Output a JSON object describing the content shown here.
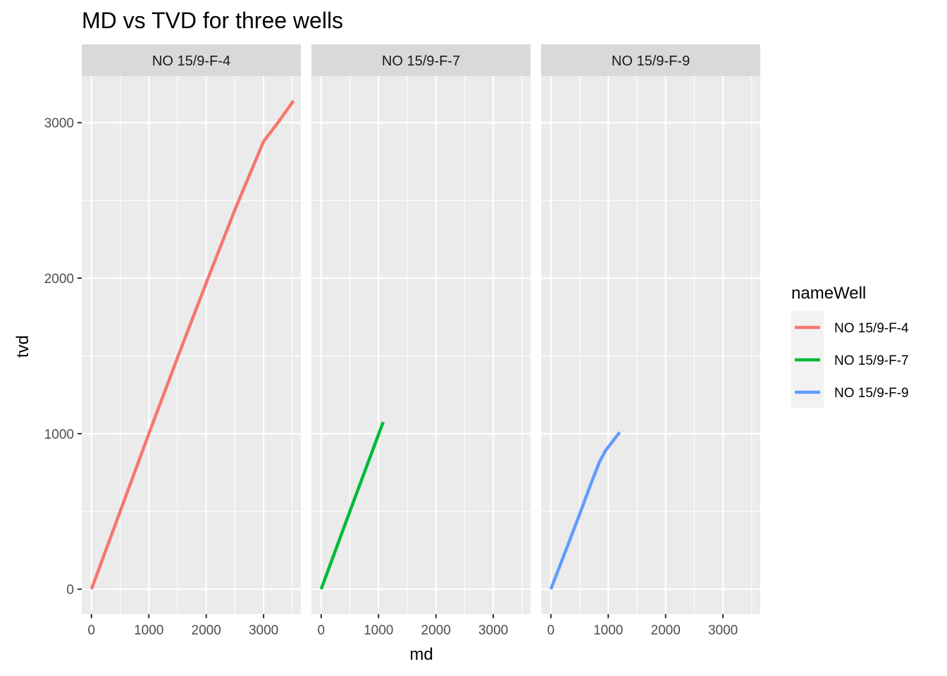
{
  "chart_data": {
    "type": "line",
    "title": "MD vs TVD for three wells",
    "xlabel": "md",
    "ylabel": "tvd",
    "xlim": [
      -170,
      3650
    ],
    "ylim": [
      -160,
      3300
    ],
    "x_ticks": [
      0,
      1000,
      2000,
      3000
    ],
    "y_ticks": [
      0,
      1000,
      2000,
      3000
    ],
    "grid": true,
    "legend": {
      "title": "nameWell",
      "position": "right"
    },
    "facets": [
      "NO 15/9-F-4",
      "NO 15/9-F-7",
      "NO 15/9-F-9"
    ],
    "series": [
      {
        "name": "NO 15/9-F-4",
        "color": "#F8766D",
        "x": [
          0,
          500,
          1000,
          1500,
          2000,
          2500,
          3000,
          3250,
          3520
        ],
        "y": [
          0,
          500,
          1000,
          1490,
          1970,
          2440,
          2880,
          3000,
          3140
        ]
      },
      {
        "name": "NO 15/9-F-7",
        "color": "#00BA38",
        "x": [
          0,
          500,
          1080
        ],
        "y": [
          0,
          500,
          1075
        ]
      },
      {
        "name": "NO 15/9-F-9",
        "color": "#619CFF",
        "x": [
          0,
          250,
          500,
          700,
          850,
          950,
          1200
        ],
        "y": [
          0,
          240,
          480,
          680,
          820,
          890,
          1010
        ]
      }
    ]
  }
}
